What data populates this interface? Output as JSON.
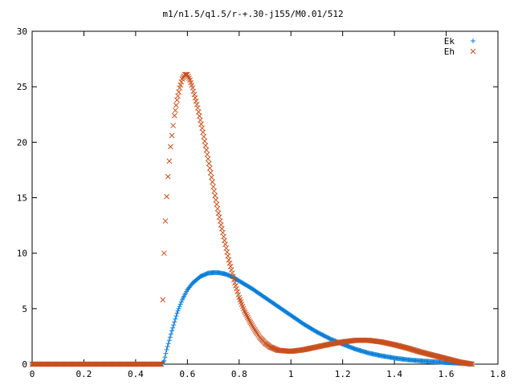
{
  "chart_data": {
    "type": "scatter",
    "title": "m1/n1.5/q1.5/r-+.30-j155/M0.01/512",
    "xlabel": "",
    "ylabel": "",
    "xlim": [
      0,
      1.8
    ],
    "ylim": [
      0,
      30
    ],
    "x_ticks": [
      0,
      0.2,
      0.4,
      0.6,
      0.8,
      1,
      1.2,
      1.4,
      1.6,
      1.8
    ],
    "x_tick_labels": [
      "0",
      "0.2",
      "0.4",
      "0.6",
      "0.8",
      "1",
      "1.2",
      "1.4",
      "1.6",
      "1.8"
    ],
    "y_ticks": [
      0,
      5,
      10,
      15,
      20,
      25,
      30
    ],
    "y_tick_labels": [
      "0",
      "5",
      "10",
      "15",
      "20",
      "25",
      "30"
    ],
    "grid": false,
    "legend_position": "top-right",
    "series": [
      {
        "name": "Ek",
        "marker": "plus",
        "color": "#0a7fd8",
        "x": [
          0.0,
          0.1,
          0.2,
          0.3,
          0.4,
          0.5,
          0.51,
          0.52,
          0.54,
          0.56,
          0.58,
          0.6,
          0.62,
          0.65,
          0.68,
          0.7,
          0.72,
          0.75,
          0.78,
          0.8,
          0.85,
          0.9,
          0.95,
          1.0,
          1.05,
          1.1,
          1.15,
          1.2,
          1.25,
          1.3,
          1.35,
          1.4,
          1.45,
          1.5,
          1.55,
          1.6,
          1.65,
          1.7
        ],
        "y": [
          0,
          0,
          0,
          0,
          0,
          0,
          0.3,
          1.3,
          3.0,
          4.6,
          5.8,
          6.7,
          7.3,
          7.9,
          8.2,
          8.25,
          8.25,
          8.1,
          7.8,
          7.5,
          6.8,
          6.0,
          5.2,
          4.4,
          3.6,
          2.9,
          2.3,
          1.8,
          1.35,
          1.0,
          0.75,
          0.55,
          0.4,
          0.3,
          0.22,
          0.15,
          0.08,
          0.0
        ]
      },
      {
        "name": "Eh",
        "marker": "cross",
        "color": "#c8501e",
        "x": [
          0.0,
          0.1,
          0.2,
          0.3,
          0.4,
          0.5,
          0.505,
          0.51,
          0.515,
          0.52,
          0.525,
          0.53,
          0.535,
          0.54,
          0.545,
          0.55,
          0.56,
          0.57,
          0.58,
          0.59,
          0.6,
          0.61,
          0.62,
          0.64,
          0.66,
          0.68,
          0.7,
          0.72,
          0.74,
          0.76,
          0.78,
          0.8,
          0.82,
          0.84,
          0.86,
          0.88,
          0.9,
          0.92,
          0.95,
          1.0,
          1.05,
          1.1,
          1.15,
          1.2,
          1.25,
          1.3,
          1.35,
          1.4,
          1.45,
          1.5,
          1.55,
          1.6,
          1.65,
          1.7
        ],
        "y": [
          0,
          0,
          0,
          0,
          0,
          0,
          5.8,
          10.0,
          12.9,
          15.1,
          16.9,
          18.3,
          19.6,
          20.6,
          21.5,
          22.4,
          23.8,
          24.9,
          25.7,
          26.1,
          26.1,
          25.6,
          24.9,
          23.1,
          20.9,
          18.5,
          16.0,
          13.6,
          11.5,
          9.4,
          7.6,
          6.0,
          4.8,
          3.9,
          3.1,
          2.4,
          1.9,
          1.55,
          1.25,
          1.15,
          1.3,
          1.55,
          1.8,
          2.0,
          2.15,
          2.15,
          2.0,
          1.75,
          1.45,
          1.1,
          0.8,
          0.5,
          0.2,
          0.0
        ]
      }
    ]
  }
}
